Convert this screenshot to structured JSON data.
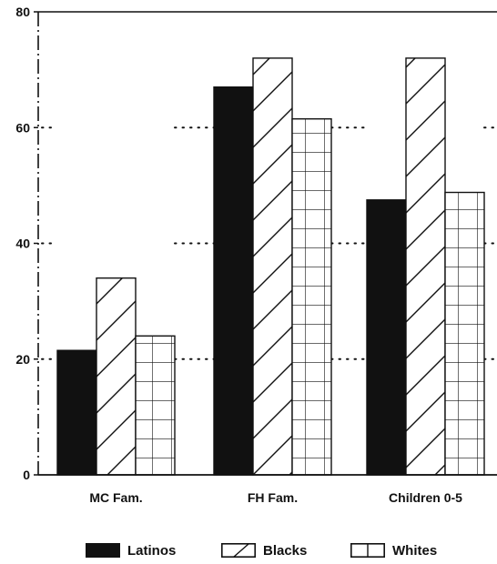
{
  "chart_data": {
    "type": "bar",
    "categories": [
      "MC Fam.",
      "FH Fam.",
      "Children 0-5"
    ],
    "series": [
      {
        "name": "Latinos",
        "values": [
          21.5,
          67,
          47.5
        ],
        "pattern": "solid"
      },
      {
        "name": "Blacks",
        "values": [
          34,
          72,
          72
        ],
        "pattern": "diagonal"
      },
      {
        "name": "Whites",
        "values": [
          24,
          61.5,
          48.8
        ],
        "pattern": "grid"
      }
    ],
    "yticks": [
      0,
      20,
      40,
      60,
      80
    ],
    "ylim": [
      0,
      80
    ],
    "grid": "dotted-partial",
    "legend_position": "bottom",
    "colors": {
      "ink": "#111111",
      "background": "#ffffff"
    }
  }
}
